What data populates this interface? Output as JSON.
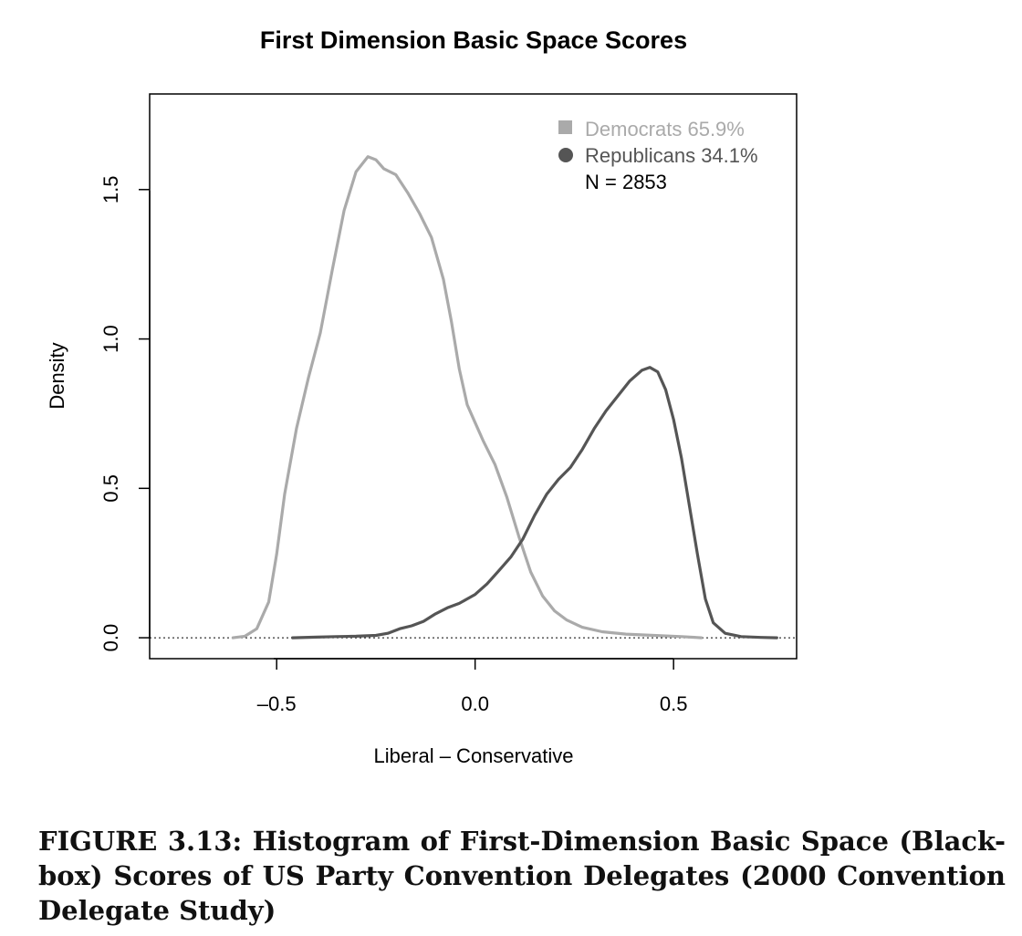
{
  "chart_data": {
    "type": "line",
    "title": "First Dimension Basic Space Scores",
    "xlabel": "Liberal – Conservative",
    "ylabel": "Density",
    "xlim": [
      -0.82,
      0.81
    ],
    "ylim": [
      -0.07,
      1.82
    ],
    "x_ticks": [
      -0.5,
      0.0,
      0.5
    ],
    "x_tick_labels": [
      "–0.5",
      "0.0",
      "0.5"
    ],
    "y_ticks": [
      0.0,
      0.5,
      1.0,
      1.5
    ],
    "y_tick_labels": [
      "0.0",
      "0.5",
      "1.0",
      "1.5"
    ],
    "grid": false,
    "legend_position": "top-right",
    "baseline": 0,
    "series": [
      {
        "name": "Democrats 65.9%",
        "color": "#aaaaaa",
        "marker": "square",
        "points": [
          [
            -0.61,
            0.0
          ],
          [
            -0.58,
            0.005
          ],
          [
            -0.55,
            0.03
          ],
          [
            -0.52,
            0.12
          ],
          [
            -0.5,
            0.28
          ],
          [
            -0.48,
            0.48
          ],
          [
            -0.45,
            0.7
          ],
          [
            -0.42,
            0.87
          ],
          [
            -0.39,
            1.02
          ],
          [
            -0.36,
            1.23
          ],
          [
            -0.33,
            1.43
          ],
          [
            -0.3,
            1.56
          ],
          [
            -0.27,
            1.61
          ],
          [
            -0.25,
            1.6
          ],
          [
            -0.23,
            1.57
          ],
          [
            -0.2,
            1.55
          ],
          [
            -0.17,
            1.49
          ],
          [
            -0.14,
            1.42
          ],
          [
            -0.11,
            1.34
          ],
          [
            -0.08,
            1.2
          ],
          [
            -0.06,
            1.06
          ],
          [
            -0.04,
            0.9
          ],
          [
            -0.02,
            0.78
          ],
          [
            0.0,
            0.72
          ],
          [
            0.02,
            0.66
          ],
          [
            0.05,
            0.58
          ],
          [
            0.08,
            0.47
          ],
          [
            0.11,
            0.34
          ],
          [
            0.14,
            0.22
          ],
          [
            0.17,
            0.14
          ],
          [
            0.2,
            0.09
          ],
          [
            0.23,
            0.06
          ],
          [
            0.27,
            0.035
          ],
          [
            0.32,
            0.02
          ],
          [
            0.38,
            0.012
          ],
          [
            0.45,
            0.008
          ],
          [
            0.52,
            0.004
          ],
          [
            0.57,
            0.0
          ]
        ]
      },
      {
        "name": "Republicans 34.1%",
        "color": "#555555",
        "marker": "circle",
        "points": [
          [
            -0.46,
            0.0
          ],
          [
            -0.4,
            0.002
          ],
          [
            -0.35,
            0.004
          ],
          [
            -0.3,
            0.005
          ],
          [
            -0.25,
            0.008
          ],
          [
            -0.22,
            0.015
          ],
          [
            -0.19,
            0.03
          ],
          [
            -0.16,
            0.04
          ],
          [
            -0.13,
            0.055
          ],
          [
            -0.1,
            0.08
          ],
          [
            -0.07,
            0.1
          ],
          [
            -0.04,
            0.115
          ],
          [
            -0.02,
            0.13
          ],
          [
            0.0,
            0.145
          ],
          [
            0.03,
            0.18
          ],
          [
            0.06,
            0.225
          ],
          [
            0.09,
            0.27
          ],
          [
            0.12,
            0.33
          ],
          [
            0.15,
            0.41
          ],
          [
            0.18,
            0.48
          ],
          [
            0.21,
            0.53
          ],
          [
            0.24,
            0.57
          ],
          [
            0.27,
            0.63
          ],
          [
            0.3,
            0.7
          ],
          [
            0.33,
            0.76
          ],
          [
            0.36,
            0.81
          ],
          [
            0.39,
            0.86
          ],
          [
            0.42,
            0.895
          ],
          [
            0.44,
            0.905
          ],
          [
            0.46,
            0.89
          ],
          [
            0.48,
            0.83
          ],
          [
            0.5,
            0.73
          ],
          [
            0.52,
            0.6
          ],
          [
            0.54,
            0.44
          ],
          [
            0.56,
            0.28
          ],
          [
            0.58,
            0.13
          ],
          [
            0.6,
            0.05
          ],
          [
            0.63,
            0.015
          ],
          [
            0.67,
            0.004
          ],
          [
            0.72,
            0.001
          ],
          [
            0.76,
            0.0
          ]
        ]
      }
    ],
    "annotations": [
      "N = 2853"
    ]
  },
  "caption": "FIGURE 3.13: Histogram of First-Dimension Basic Space (Black-box) Scores of US Party Convention Delegates (2000 Convention Delegate Study)"
}
